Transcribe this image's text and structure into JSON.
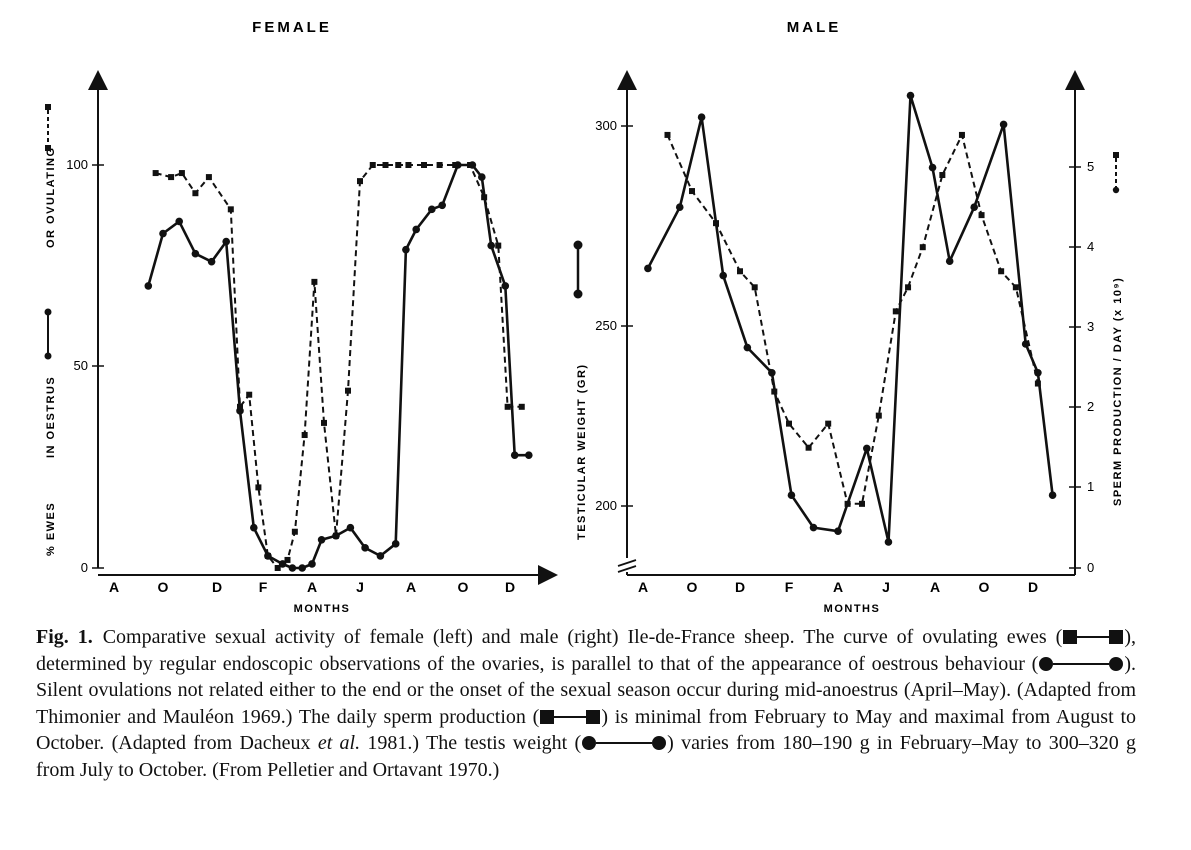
{
  "chart_data": [
    {
      "type": "line",
      "title": "FEMALE",
      "xlabel": "MONTHS",
      "ylabel_left_segments": [
        "% EWES",
        "IN OESTRUS",
        "OR OVULATING"
      ],
      "categories": [
        "A",
        "O",
        "D",
        "F",
        "A",
        "J",
        "A",
        "O",
        "D"
      ],
      "ylim": [
        0,
        115
      ],
      "yticks": [
        "0",
        "50",
        "100"
      ],
      "series": [
        {
          "style": "solid-circle",
          "x": [
            0.7,
            1.0,
            1.3,
            1.6,
            1.9,
            2.2,
            2.5,
            2.8,
            3.1,
            3.4,
            3.6,
            3.8,
            4.0,
            4.2,
            4.5,
            4.8,
            5.1,
            5.4,
            5.7,
            5.9,
            6.1,
            6.4,
            6.6,
            6.9,
            7.2,
            7.4,
            7.6,
            7.9,
            8.1,
            8.4
          ],
          "values": [
            70,
            83,
            86,
            78,
            76,
            81,
            39,
            10,
            3,
            1,
            0,
            0,
            1,
            7,
            8,
            10,
            5,
            3,
            6,
            79,
            84,
            89,
            90,
            100,
            100,
            97,
            80,
            70,
            28,
            28
          ]
        },
        {
          "style": "dashed-square",
          "x": [
            0.85,
            1.15,
            1.35,
            1.6,
            1.85,
            2.3,
            2.5,
            2.7,
            2.9,
            3.1,
            3.3,
            3.5,
            3.65,
            3.85,
            4.05,
            4.25,
            4.5,
            4.75,
            5.0,
            5.25,
            5.5,
            5.75,
            5.95,
            6.25,
            6.55,
            6.85,
            7.15,
            7.45,
            7.75,
            7.95,
            8.25
          ],
          "values": [
            98,
            97,
            98,
            93,
            97,
            89,
            40,
            43,
            20,
            3,
            0,
            2,
            9,
            33,
            71,
            36,
            8,
            44,
            96,
            100,
            100,
            100,
            100,
            100,
            100,
            100,
            100,
            92,
            80,
            40,
            40
          ]
        }
      ]
    },
    {
      "type": "line",
      "title": "MALE",
      "xlabel": "MONTHS",
      "ylabel": "TESTICULAR WEIGHT (GR)",
      "ylabel2": "SPERM PRODUCTION / DAY (x 10⁹)",
      "categories": [
        "A",
        "O",
        "D",
        "F",
        "A",
        "J",
        "A",
        "O",
        "D"
      ],
      "ylim": [
        190,
        315
      ],
      "yticks": [
        "200",
        "250",
        "300"
      ],
      "y2lim": [
        0,
        6
      ],
      "y2ticks": [
        "0",
        "1",
        "2",
        "3",
        "4",
        "5"
      ],
      "series": [
        {
          "name": "Testicular weight",
          "style": "solid-circle",
          "axis": "left",
          "x": [
            0.1,
            0.75,
            1.2,
            1.65,
            2.15,
            2.65,
            3.05,
            3.5,
            4.0,
            4.6,
            5.05,
            5.5,
            5.95,
            6.3,
            6.8,
            7.4,
            7.85,
            8.1,
            8.4
          ],
          "values": [
            266,
            283,
            308,
            264,
            244,
            237,
            203,
            194,
            193,
            216,
            190,
            314,
            294,
            268,
            283,
            306,
            245,
            237,
            203
          ]
        },
        {
          "name": "Sperm production",
          "style": "dashed-square",
          "axis": "right",
          "x": [
            0.5,
            1.0,
            1.5,
            2.0,
            2.3,
            2.7,
            3.0,
            3.4,
            3.8,
            4.2,
            4.5,
            4.85,
            5.2,
            5.45,
            5.75,
            6.15,
            6.55,
            6.95,
            7.35,
            7.65,
            8.1
          ],
          "values": [
            5.4,
            4.7,
            4.3,
            3.7,
            3.5,
            2.2,
            1.8,
            1.5,
            1.8,
            0.8,
            0.8,
            1.9,
            3.2,
            3.5,
            4.0,
            4.9,
            5.4,
            4.4,
            3.7,
            3.5,
            2.3
          ]
        }
      ]
    }
  ],
  "caption": {
    "label": "Fig. 1.",
    "p1": "Comparative sexual activity of female (left) and male (right) Ile-de-France sheep. The curve of ovulating ewes (",
    "p2": "), determined by regular endoscopic observations of the ovaries, is parallel to that of the appearance of oestrous behaviour (",
    "p3": "). Silent ovulations not related either to the end or the onset of the sexual season occur during mid-anoestrus (April–May). (Adapted from Thimonier and Mauléon 1969.) The daily sperm production (",
    "p4": ") is minimal from February to May and maximal from August to October. (Adapted from Dacheux ",
    "etal": "et al.",
    "p5": " 1981.) The testis weight (",
    "p6": ") varies from 180–190 g in February–May to 300–320 g from July to October. (From Pelletier and Ortavant 1970.)"
  }
}
